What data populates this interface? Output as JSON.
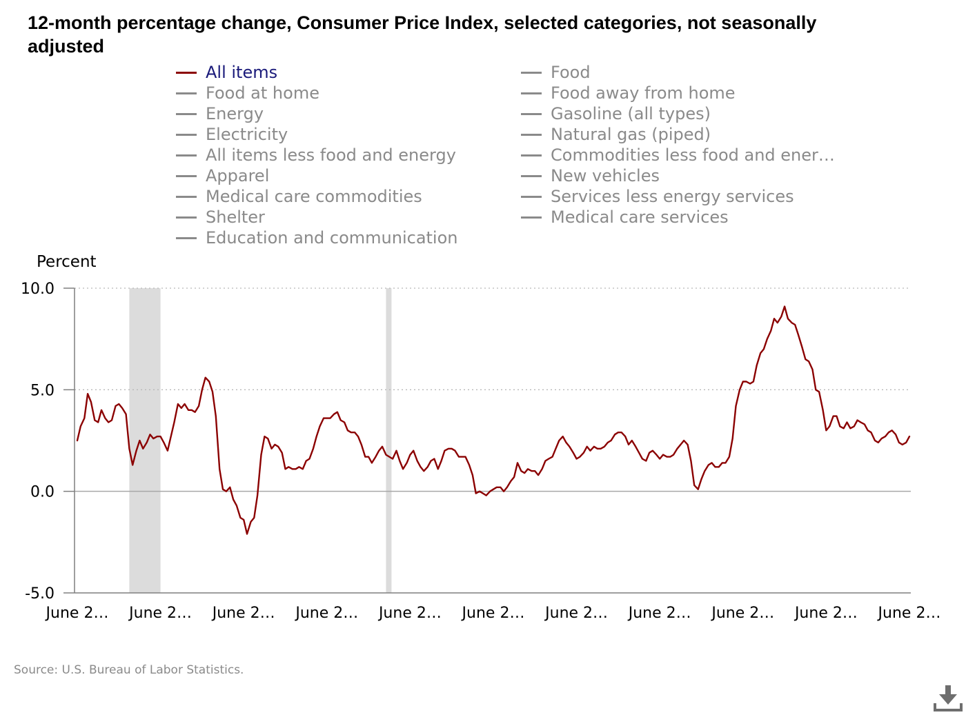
{
  "title": "12-month percentage change, Consumer Price Index, selected categories, not seasonally adjusted",
  "legend": {
    "col1": [
      "All items",
      "Food at home",
      "Energy",
      "Electricity",
      "All items less food and energy",
      "Apparel",
      "Medical care commodities",
      "Shelter",
      "Education and communication"
    ],
    "col2": [
      "Food",
      "Food away from home",
      "Gasoline (all types)",
      "Natural gas (piped)",
      "Commodities less food and ener…",
      "New vehicles",
      "Services less energy services",
      "Medical care services"
    ]
  },
  "source": "Source: U.S. Bureau of Labor Statistics.",
  "colors": {
    "series": "#8b0000",
    "legend_active_text": "#1a1a7a",
    "legend_inactive": "#8a8a8a",
    "recession": "#dcdcdc",
    "axis": "#7f7f7f"
  },
  "icons": {
    "download": "download-icon"
  },
  "chart_data": {
    "type": "line",
    "title": "12-month percentage change, Consumer Price Index, selected categories, not seasonally adjusted",
    "ylabel": "Percent",
    "xlabel": "",
    "ylim": [
      -5,
      10
    ],
    "yticks": [
      "10.0",
      "5.0",
      "0.0",
      "-5.0"
    ],
    "xtick_labels": [
      "June 2…",
      "June 2…",
      "June 2…",
      "June 2…",
      "June 2…",
      "June 2…",
      "June 2…",
      "June 2…",
      "June 2…",
      "June 2…",
      "June 2…"
    ],
    "grid": "horizontal dotted",
    "legend_placement": "top",
    "recession_bands": [
      [
        1.25,
        2.0
      ],
      [
        7.42,
        7.5
      ]
    ],
    "series": [
      {
        "name": "All items",
        "points": [
          [
            0.0,
            2.5
          ],
          [
            0.08,
            3.2
          ],
          [
            0.17,
            3.6
          ],
          [
            0.25,
            4.8
          ],
          [
            0.33,
            4.4
          ],
          [
            0.42,
            3.5
          ],
          [
            0.5,
            3.4
          ],
          [
            0.58,
            4.0
          ],
          [
            0.67,
            3.6
          ],
          [
            0.75,
            3.4
          ],
          [
            0.83,
            3.5
          ],
          [
            0.92,
            4.2
          ],
          [
            1.0,
            4.3
          ],
          [
            1.08,
            4.1
          ],
          [
            1.17,
            3.8
          ],
          [
            1.25,
            2.1
          ],
          [
            1.33,
            1.3
          ],
          [
            1.42,
            2.0
          ],
          [
            1.5,
            2.5
          ],
          [
            1.58,
            2.1
          ],
          [
            1.67,
            2.4
          ],
          [
            1.75,
            2.8
          ],
          [
            1.83,
            2.6
          ],
          [
            1.92,
            2.7
          ],
          [
            2.0,
            2.7
          ],
          [
            2.08,
            2.4
          ],
          [
            2.17,
            2.0
          ],
          [
            2.25,
            2.7
          ],
          [
            2.33,
            3.4
          ],
          [
            2.42,
            4.3
          ],
          [
            2.5,
            4.1
          ],
          [
            2.58,
            4.3
          ],
          [
            2.67,
            4.0
          ],
          [
            2.75,
            4.0
          ],
          [
            2.83,
            3.9
          ],
          [
            2.92,
            4.2
          ],
          [
            3.0,
            5.0
          ],
          [
            3.08,
            5.6
          ],
          [
            3.17,
            5.4
          ],
          [
            3.25,
            4.9
          ],
          [
            3.33,
            3.7
          ],
          [
            3.42,
            1.1
          ],
          [
            3.5,
            0.1
          ],
          [
            3.58,
            0.0
          ],
          [
            3.67,
            0.2
          ],
          [
            3.75,
            -0.4
          ],
          [
            3.83,
            -0.7
          ],
          [
            3.92,
            -1.3
          ],
          [
            4.0,
            -1.4
          ],
          [
            4.08,
            -2.1
          ],
          [
            4.17,
            -1.5
          ],
          [
            4.25,
            -1.3
          ],
          [
            4.33,
            -0.2
          ],
          [
            4.42,
            1.8
          ],
          [
            4.5,
            2.7
          ],
          [
            4.58,
            2.6
          ],
          [
            4.67,
            2.1
          ],
          [
            4.75,
            2.3
          ],
          [
            4.83,
            2.2
          ],
          [
            4.92,
            1.9
          ],
          [
            5.0,
            1.1
          ],
          [
            5.08,
            1.2
          ],
          [
            5.17,
            1.1
          ],
          [
            5.25,
            1.1
          ],
          [
            5.33,
            1.2
          ],
          [
            5.42,
            1.1
          ],
          [
            5.5,
            1.5
          ],
          [
            5.58,
            1.6
          ],
          [
            5.67,
            2.1
          ],
          [
            5.75,
            2.7
          ],
          [
            5.83,
            3.2
          ],
          [
            5.92,
            3.6
          ],
          [
            6.0,
            3.6
          ],
          [
            6.08,
            3.6
          ],
          [
            6.17,
            3.8
          ],
          [
            6.25,
            3.9
          ],
          [
            6.33,
            3.5
          ],
          [
            6.42,
            3.4
          ],
          [
            6.5,
            3.0
          ],
          [
            6.58,
            2.9
          ],
          [
            6.67,
            2.9
          ],
          [
            6.75,
            2.7
          ],
          [
            6.83,
            2.3
          ],
          [
            6.92,
            1.7
          ],
          [
            7.0,
            1.7
          ],
          [
            7.08,
            1.4
          ],
          [
            7.17,
            1.7
          ],
          [
            7.25,
            2.0
          ],
          [
            7.33,
            2.2
          ],
          [
            7.42,
            1.8
          ],
          [
            7.5,
            1.7
          ],
          [
            7.58,
            1.6
          ],
          [
            7.67,
            2.0
          ],
          [
            7.75,
            1.5
          ],
          [
            7.83,
            1.1
          ],
          [
            7.92,
            1.4
          ],
          [
            8.0,
            1.8
          ],
          [
            8.08,
            2.0
          ],
          [
            8.17,
            1.5
          ],
          [
            8.25,
            1.2
          ],
          [
            8.33,
            1.0
          ],
          [
            8.42,
            1.2
          ],
          [
            8.5,
            1.5
          ],
          [
            8.58,
            1.6
          ],
          [
            8.67,
            1.1
          ],
          [
            8.75,
            1.5
          ],
          [
            8.83,
            2.0
          ],
          [
            8.92,
            2.1
          ],
          [
            9.0,
            2.1
          ],
          [
            9.08,
            2.0
          ],
          [
            9.17,
            1.7
          ],
          [
            9.25,
            1.7
          ],
          [
            9.33,
            1.7
          ],
          [
            9.42,
            1.3
          ],
          [
            9.5,
            0.8
          ],
          [
            9.58,
            -0.1
          ],
          [
            9.67,
            0.0
          ],
          [
            9.75,
            -0.1
          ],
          [
            9.83,
            -0.2
          ],
          [
            9.92,
            0.0
          ],
          [
            10.0,
            0.1
          ],
          [
            10.08,
            0.2
          ],
          [
            10.17,
            0.2
          ],
          [
            10.25,
            0.0
          ],
          [
            10.33,
            0.2
          ],
          [
            10.42,
            0.5
          ],
          [
            10.5,
            0.7
          ],
          [
            10.58,
            1.4
          ],
          [
            10.67,
            1.0
          ],
          [
            10.75,
            0.9
          ],
          [
            10.83,
            1.1
          ],
          [
            10.92,
            1.0
          ],
          [
            11.0,
            1.0
          ],
          [
            11.08,
            0.8
          ],
          [
            11.17,
            1.1
          ],
          [
            11.25,
            1.5
          ],
          [
            11.33,
            1.6
          ],
          [
            11.42,
            1.7
          ],
          [
            11.5,
            2.1
          ],
          [
            11.58,
            2.5
          ],
          [
            11.67,
            2.7
          ],
          [
            11.75,
            2.4
          ],
          [
            11.83,
            2.2
          ],
          [
            11.92,
            1.9
          ],
          [
            12.0,
            1.6
          ],
          [
            12.08,
            1.7
          ],
          [
            12.17,
            1.9
          ],
          [
            12.25,
            2.2
          ],
          [
            12.33,
            2.0
          ],
          [
            12.42,
            2.2
          ],
          [
            12.5,
            2.1
          ],
          [
            12.58,
            2.1
          ],
          [
            12.67,
            2.2
          ],
          [
            12.75,
            2.4
          ],
          [
            12.83,
            2.5
          ],
          [
            12.92,
            2.8
          ],
          [
            13.0,
            2.9
          ],
          [
            13.08,
            2.9
          ],
          [
            13.17,
            2.7
          ],
          [
            13.25,
            2.3
          ],
          [
            13.33,
            2.5
          ],
          [
            13.42,
            2.2
          ],
          [
            13.5,
            1.9
          ],
          [
            13.58,
            1.6
          ],
          [
            13.67,
            1.5
          ],
          [
            13.75,
            1.9
          ],
          [
            13.83,
            2.0
          ],
          [
            13.92,
            1.8
          ],
          [
            14.0,
            1.6
          ],
          [
            14.08,
            1.8
          ],
          [
            14.17,
            1.7
          ],
          [
            14.25,
            1.7
          ],
          [
            14.33,
            1.8
          ],
          [
            14.42,
            2.1
          ],
          [
            14.5,
            2.3
          ],
          [
            14.58,
            2.5
          ],
          [
            14.67,
            2.3
          ],
          [
            14.75,
            1.5
          ],
          [
            14.83,
            0.3
          ],
          [
            14.92,
            0.1
          ],
          [
            15.0,
            0.6
          ],
          [
            15.08,
            1.0
          ],
          [
            15.17,
            1.3
          ],
          [
            15.25,
            1.4
          ],
          [
            15.33,
            1.2
          ],
          [
            15.42,
            1.2
          ],
          [
            15.5,
            1.4
          ],
          [
            15.58,
            1.4
          ],
          [
            15.67,
            1.7
          ],
          [
            15.75,
            2.6
          ],
          [
            15.83,
            4.2
          ],
          [
            15.92,
            5.0
          ],
          [
            16.0,
            5.4
          ],
          [
            16.08,
            5.4
          ],
          [
            16.17,
            5.3
          ],
          [
            16.25,
            5.4
          ],
          [
            16.33,
            6.2
          ],
          [
            16.42,
            6.8
          ],
          [
            16.5,
            7.0
          ],
          [
            16.58,
            7.5
          ],
          [
            16.67,
            7.9
          ],
          [
            16.75,
            8.5
          ],
          [
            16.83,
            8.3
          ],
          [
            16.92,
            8.6
          ],
          [
            17.0,
            9.1
          ],
          [
            17.08,
            8.5
          ],
          [
            17.17,
            8.3
          ],
          [
            17.25,
            8.2
          ],
          [
            17.33,
            7.7
          ],
          [
            17.42,
            7.1
          ],
          [
            17.5,
            6.5
          ],
          [
            17.58,
            6.4
          ],
          [
            17.67,
            6.0
          ],
          [
            17.75,
            5.0
          ],
          [
            17.83,
            4.9
          ],
          [
            17.92,
            4.0
          ],
          [
            18.0,
            3.0
          ],
          [
            18.08,
            3.2
          ],
          [
            18.17,
            3.7
          ],
          [
            18.25,
            3.7
          ],
          [
            18.33,
            3.2
          ],
          [
            18.42,
            3.1
          ],
          [
            18.5,
            3.4
          ],
          [
            18.58,
            3.1
          ],
          [
            18.67,
            3.2
          ],
          [
            18.75,
            3.5
          ],
          [
            18.83,
            3.4
          ],
          [
            18.92,
            3.3
          ],
          [
            19.0,
            3.0
          ],
          [
            19.08,
            2.9
          ],
          [
            19.17,
            2.5
          ],
          [
            19.25,
            2.4
          ],
          [
            19.33,
            2.6
          ],
          [
            19.42,
            2.7
          ],
          [
            19.5,
            2.9
          ],
          [
            19.58,
            3.0
          ],
          [
            19.67,
            2.8
          ],
          [
            19.75,
            2.4
          ],
          [
            19.83,
            2.3
          ],
          [
            19.92,
            2.4
          ],
          [
            20.0,
            2.7
          ]
        ]
      }
    ]
  }
}
